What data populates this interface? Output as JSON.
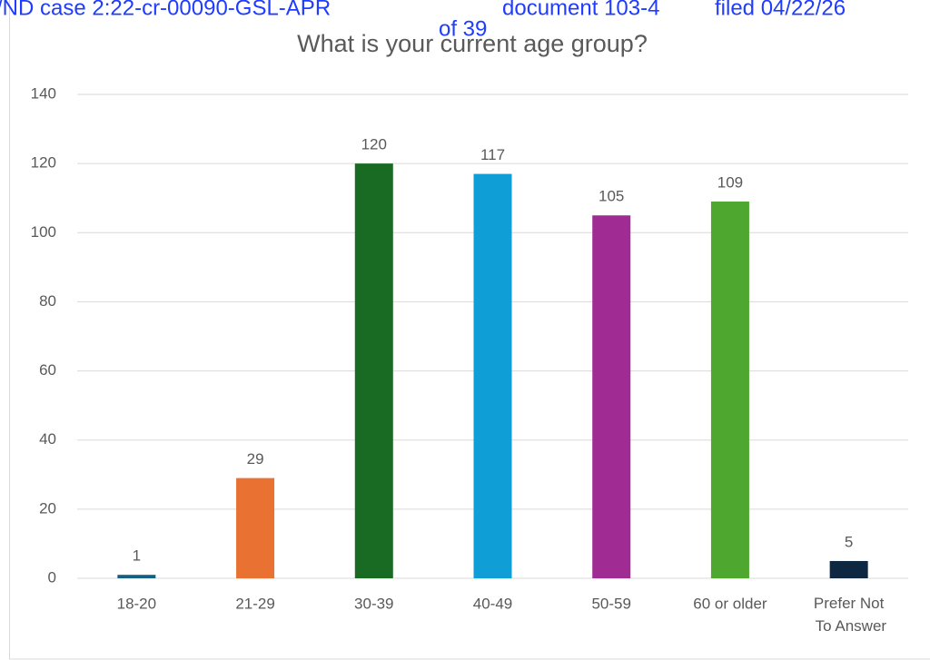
{
  "chart_data": {
    "type": "bar",
    "title": "What is your current age group?",
    "annotations": [
      "/ND case 2:22-cr-00090-GSL-APR",
      "document 103-4",
      "filed 04/22/26",
      "of 39"
    ],
    "categories": [
      "18-20",
      "21-29",
      "30-39",
      "40-49",
      "50-59",
      "60 or older",
      "Prefer Not To Answer"
    ],
    "values": [
      1,
      29,
      120,
      117,
      105,
      109,
      5
    ],
    "colors": [
      "#156082",
      "#e97132",
      "#196b24",
      "#0f9ed5",
      "#a02b93",
      "#4ea72e",
      "#0e2841"
    ],
    "ylim": [
      0,
      140
    ],
    "yticks": [
      0,
      20,
      40,
      60,
      80,
      100,
      120,
      140
    ],
    "grid": true
  }
}
